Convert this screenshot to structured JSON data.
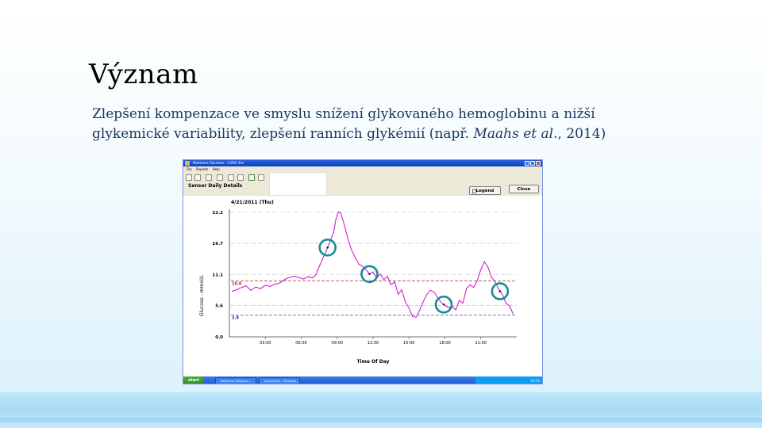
{
  "slide": {
    "title": "Význam",
    "text_line1": "Zlepšení kompenzace ve smyslu snížení glykovaného hemoglobinu a nižší",
    "text_line2_a": "glykemické variability, zlepšení ranních glykémií (např. ",
    "text_line2_ital": "Maahs et al.",
    "text_line2_b": ", 2014)"
  },
  "window": {
    "title": "Medtronic Solutions : CGMS iPro",
    "menu": [
      "File",
      "Reports",
      "Help"
    ],
    "sensor_label": "Sensor Daily Details",
    "legend_button": "Legend",
    "close_button": "Close"
  },
  "chart_data": {
    "type": "line",
    "title": "4/21/2011 (Thu)",
    "xlabel": "Time Of Day",
    "ylabel": "Glucose - mmol/L",
    "x_ticks": [
      "03:00",
      "06:00",
      "09:00",
      "12:00",
      "15:00",
      "18:00",
      "21:00"
    ],
    "y_ticks": [
      0.0,
      5.6,
      11.1,
      16.7,
      22.2
    ],
    "y_tick_labels": [
      "0.0",
      "5.6",
      "11.1",
      "16.7",
      "22.2"
    ],
    "xlim_hours": [
      0,
      24
    ],
    "ylim": [
      0,
      22.2
    ],
    "thresholds": [
      {
        "value": 10.0,
        "label": "10.0",
        "color": "#b22222"
      },
      {
        "value": 3.9,
        "label": "3.9",
        "color": "#1c2bb0"
      }
    ],
    "series": [
      {
        "color": "#cc22cc",
        "hours": [
          0.2,
          0.6,
          1.0,
          1.4,
          1.8,
          2.2,
          2.6,
          3.0,
          3.4,
          3.8,
          4.2,
          4.6,
          5.0,
          5.4,
          5.8,
          6.2,
          6.6,
          6.9,
          7.2,
          7.5,
          7.8,
          8.1,
          8.4,
          8.7,
          8.9,
          9.1,
          9.3,
          9.6,
          9.9,
          10.2,
          10.5,
          10.8,
          11.1,
          11.4,
          11.7,
          12.0,
          12.3,
          12.6,
          12.9,
          13.2,
          13.5,
          13.8,
          14.1,
          14.4,
          14.7,
          15.0,
          15.3,
          15.6,
          15.9,
          16.2,
          16.5,
          16.8,
          17.1,
          17.4,
          17.7,
          18.0,
          18.3,
          18.6,
          18.9,
          19.2,
          19.5,
          19.8,
          20.1,
          20.4,
          20.7,
          21.0,
          21.3,
          21.6,
          21.9,
          22.2,
          22.5,
          22.8,
          23.1,
          23.4,
          23.7
        ],
        "mmol": [
          8.1,
          8.4,
          8.8,
          9.1,
          8.3,
          8.9,
          8.6,
          9.2,
          9.0,
          9.4,
          9.6,
          10.2,
          10.6,
          10.8,
          10.6,
          10.3,
          10.8,
          10.5,
          11.0,
          12.5,
          14.0,
          15.4,
          17.0,
          18.6,
          21.0,
          22.3,
          22.1,
          20.0,
          17.5,
          15.5,
          14.2,
          13.0,
          12.6,
          12.0,
          11.2,
          11.6,
          10.5,
          11.2,
          10.2,
          10.8,
          9.3,
          9.8,
          7.6,
          8.4,
          6.2,
          5.1,
          3.6,
          3.5,
          4.8,
          6.3,
          7.6,
          8.3,
          8.0,
          7.0,
          6.1,
          5.6,
          5.2,
          5.5,
          4.8,
          6.5,
          6.0,
          8.6,
          9.3,
          8.8,
          10.0,
          12.0,
          13.4,
          12.4,
          10.6,
          9.8,
          8.4,
          7.6,
          6.0,
          5.5,
          4.1
        ]
      }
    ],
    "markers_hours": [
      8.2,
      11.7,
      17.9,
      22.6
    ]
  },
  "taskbar": {
    "start_label": "start",
    "items": [
      "Medtronic Solutions...",
      "Document1 - Microsoft..."
    ],
    "clock": "10:54"
  },
  "colors": {
    "title_text": "#000000",
    "body_text": "#17365d",
    "trace": "#cc22cc",
    "marker_ring": "#1a8a96",
    "high_line": "#b22222",
    "low_line": "#1c2bb0"
  }
}
